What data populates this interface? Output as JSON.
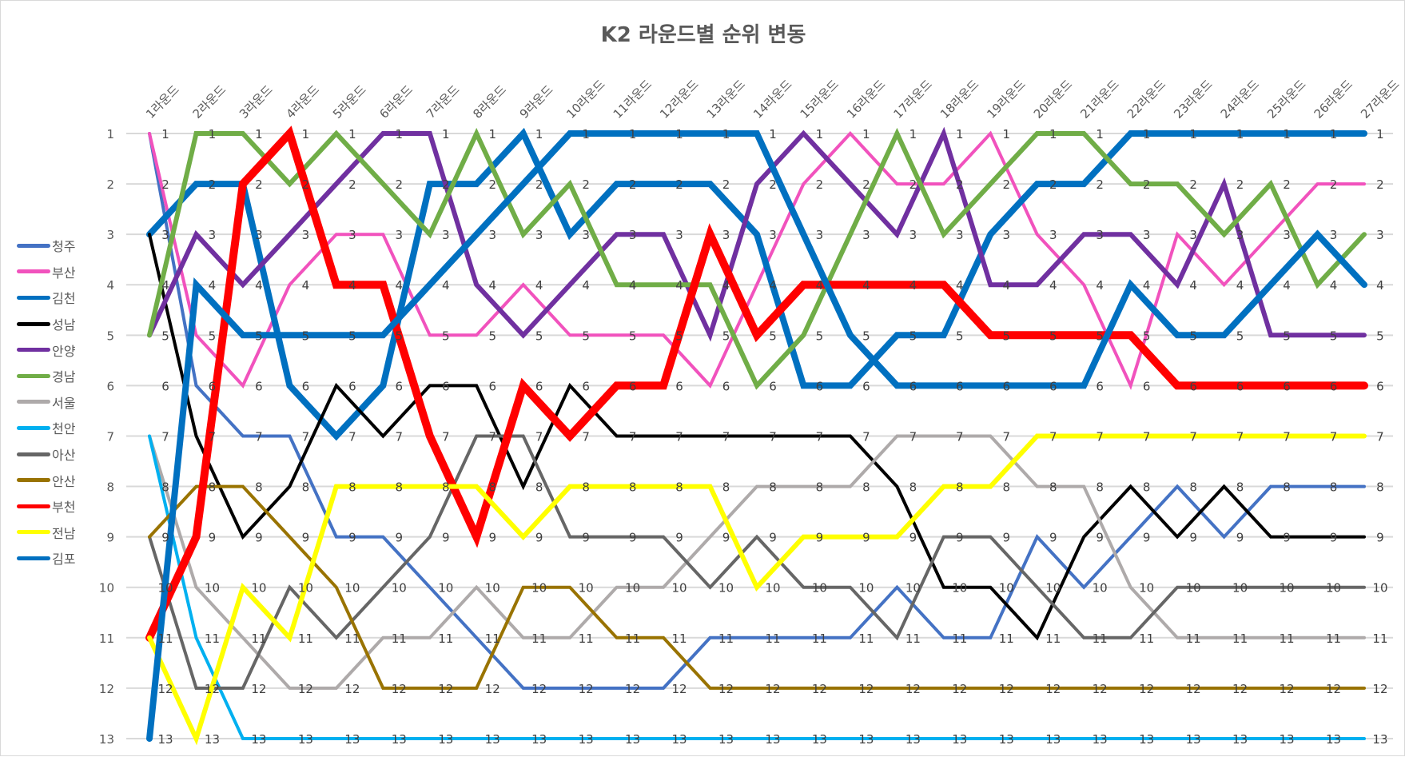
{
  "chart_data": {
    "type": "line",
    "title": "K2 라운드별 순위 변동",
    "xlabel": "",
    "ylabel": "",
    "y_inverted": true,
    "ylim": [
      1,
      13
    ],
    "y_ticks": [
      1,
      2,
      3,
      4,
      5,
      6,
      7,
      8,
      9,
      10,
      11,
      12,
      13
    ],
    "grid": true,
    "legend_position": "left",
    "categories": [
      "1라운드",
      "2라운드",
      "3라운드",
      "4라운드",
      "5라운드",
      "6라운드",
      "7라운드",
      "8라운드",
      "9라운드",
      "10라운드",
      "11라운드",
      "12라운드",
      "13라운드",
      "14라운드",
      "15라운드",
      "16라운드",
      "17라운드",
      "18라운드",
      "19라운드",
      "20라운드",
      "21라운드",
      "22라운드",
      "23라운드",
      "24라운드",
      "25라운드",
      "26라운드",
      "27라운드"
    ],
    "series": [
      {
        "name": "청주",
        "color": "#4472C4",
        "width": 4,
        "values": [
          1,
          6,
          7,
          7,
          9,
          9,
          10,
          11,
          12,
          12,
          12,
          12,
          11,
          11,
          11,
          11,
          10,
          11,
          11,
          9,
          10,
          9,
          8,
          9,
          8,
          8,
          8
        ]
      },
      {
        "name": "부산",
        "color": "#F152BD",
        "width": 4,
        "values": [
          1,
          5,
          6,
          4,
          3,
          3,
          5,
          5,
          4,
          5,
          5,
          5,
          6,
          4,
          2,
          1,
          2,
          2,
          1,
          3,
          4,
          6,
          3,
          4,
          3,
          2,
          2
        ]
      },
      {
        "name": "김천",
        "color": "#0070C0",
        "width": 8,
        "values": [
          3,
          2,
          2,
          6,
          7,
          6,
          2,
          2,
          1,
          3,
          2,
          2,
          2,
          3,
          6,
          6,
          5,
          5,
          3,
          2,
          2,
          1,
          1,
          1,
          1,
          1,
          1
        ]
      },
      {
        "name": "성남",
        "color": "#000000",
        "width": 4,
        "values": [
          3,
          7,
          9,
          8,
          6,
          7,
          6,
          6,
          8,
          6,
          7,
          7,
          7,
          7,
          7,
          7,
          8,
          10,
          10,
          11,
          9,
          8,
          9,
          8,
          9,
          9,
          9
        ]
      },
      {
        "name": "안양",
        "color": "#7030A0",
        "width": 6,
        "values": [
          5,
          3,
          4,
          3,
          2,
          1,
          1,
          4,
          5,
          4,
          3,
          3,
          5,
          2,
          1,
          2,
          3,
          1,
          4,
          4,
          3,
          3,
          4,
          2,
          5,
          5,
          5
        ]
      },
      {
        "name": "경남",
        "color": "#70AD47",
        "width": 6,
        "values": [
          5,
          1,
          1,
          2,
          1,
          2,
          3,
          1,
          3,
          2,
          4,
          4,
          4,
          6,
          5,
          3,
          1,
          3,
          2,
          1,
          1,
          2,
          2,
          3,
          2,
          4,
          3
        ]
      },
      {
        "name": "서울",
        "color": "#AEAAAA",
        "width": 4,
        "values": [
          7,
          10,
          11,
          12,
          12,
          11,
          11,
          10,
          11,
          11,
          10,
          10,
          9,
          8,
          8,
          8,
          7,
          7,
          7,
          8,
          8,
          10,
          11,
          11,
          11,
          11,
          11
        ]
      },
      {
        "name": "천안",
        "color": "#00B0F0",
        "width": 4,
        "values": [
          7,
          11,
          13,
          13,
          13,
          13,
          13,
          13,
          13,
          13,
          13,
          13,
          13,
          13,
          13,
          13,
          13,
          13,
          13,
          13,
          13,
          13,
          13,
          13,
          13,
          13,
          13
        ]
      },
      {
        "name": "아산",
        "color": "#666666",
        "width": 4,
        "values": [
          9,
          12,
          12,
          10,
          11,
          10,
          9,
          7,
          7,
          9,
          9,
          9,
          10,
          9,
          10,
          10,
          11,
          9,
          9,
          10,
          11,
          11,
          10,
          10,
          10,
          10,
          10
        ]
      },
      {
        "name": "안산",
        "color": "#997300",
        "width": 4,
        "values": [
          9,
          8,
          8,
          9,
          10,
          12,
          12,
          12,
          10,
          10,
          11,
          11,
          12,
          12,
          12,
          12,
          12,
          12,
          12,
          12,
          12,
          12,
          12,
          12,
          12,
          12,
          12
        ]
      },
      {
        "name": "부천",
        "color": "#FF0000",
        "width": 10,
        "values": [
          11,
          9,
          2,
          1,
          4,
          4,
          7,
          9,
          6,
          7,
          6,
          6,
          3,
          5,
          4,
          4,
          4,
          4,
          5,
          5,
          5,
          5,
          6,
          6,
          6,
          6,
          6
        ]
      },
      {
        "name": "전남",
        "color": "#FFFF00",
        "width": 6,
        "values": [
          11,
          13,
          10,
          11,
          8,
          8,
          8,
          8,
          9,
          8,
          8,
          8,
          8,
          10,
          9,
          9,
          9,
          8,
          8,
          7,
          7,
          7,
          7,
          7,
          7,
          7,
          7
        ]
      },
      {
        "name": "김포",
        "color": "#0070C0",
        "width": 8,
        "values": [
          13,
          4,
          5,
          5,
          5,
          5,
          4,
          3,
          2,
          1,
          1,
          1,
          1,
          1,
          3,
          5,
          6,
          6,
          6,
          6,
          6,
          4,
          5,
          5,
          4,
          3,
          4
        ]
      }
    ]
  },
  "legend": {
    "items": [
      "청주",
      "부산",
      "김천",
      "성남",
      "안양",
      "경남",
      "서울",
      "천안",
      "아산",
      "안산",
      "부천",
      "전남",
      "김포"
    ]
  }
}
